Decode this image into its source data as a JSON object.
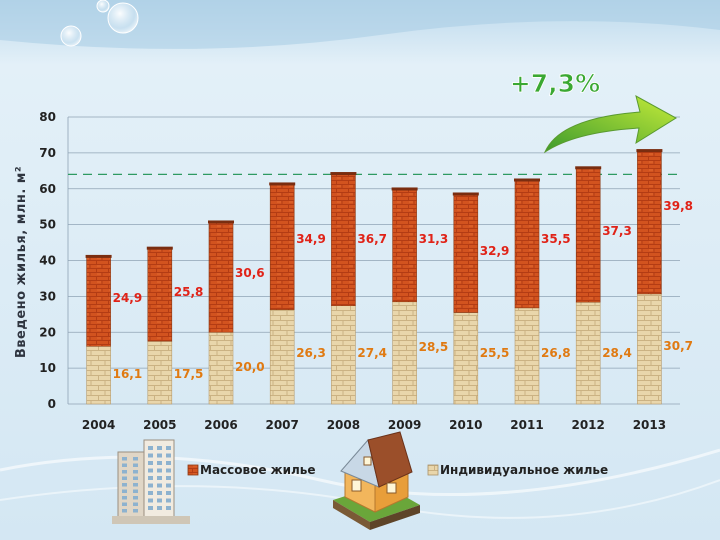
{
  "chart_data": {
    "type": "bar",
    "stacked": true,
    "ylabel": "Введено жилья, млн. м²",
    "ylim": [
      0,
      80
    ],
    "yticks": [
      "0",
      "10",
      "20",
      "30",
      "40",
      "50",
      "60",
      "70",
      "80"
    ],
    "categories": [
      "2004",
      "2005",
      "2006",
      "2007",
      "2008",
      "2009",
      "2010",
      "2011",
      "2012",
      "2013"
    ],
    "series": [
      {
        "name": "Индивидуальное жилье",
        "color": "#e8d3a6",
        "label_color": "#e07a12",
        "values": [
          16.1,
          17.5,
          20.0,
          26.3,
          27.4,
          28.5,
          25.5,
          26.8,
          28.4,
          30.7
        ],
        "labels": [
          "16,1",
          "17,5",
          "20,0",
          "26,3",
          "27,4",
          "28,5",
          "25,5",
          "26,8",
          "28,4",
          "30,7"
        ]
      },
      {
        "name": "Массовое жилье",
        "color": "#d2531f",
        "label_color": "#e02318",
        "values": [
          24.9,
          25.8,
          30.6,
          34.9,
          36.7,
          31.3,
          32.9,
          35.5,
          37.3,
          39.8
        ],
        "labels": [
          "24,9",
          "25,8",
          "30,6",
          "34,9",
          "36,7",
          "31,3",
          "32,9",
          "35,5",
          "37,3",
          "39,8"
        ]
      }
    ],
    "reference_line": {
      "value": 64,
      "style": "dashed",
      "color": "#2e9a62"
    },
    "annotation": "+7,3%",
    "grid": true,
    "legend": {
      "placement": "bottom"
    }
  }
}
